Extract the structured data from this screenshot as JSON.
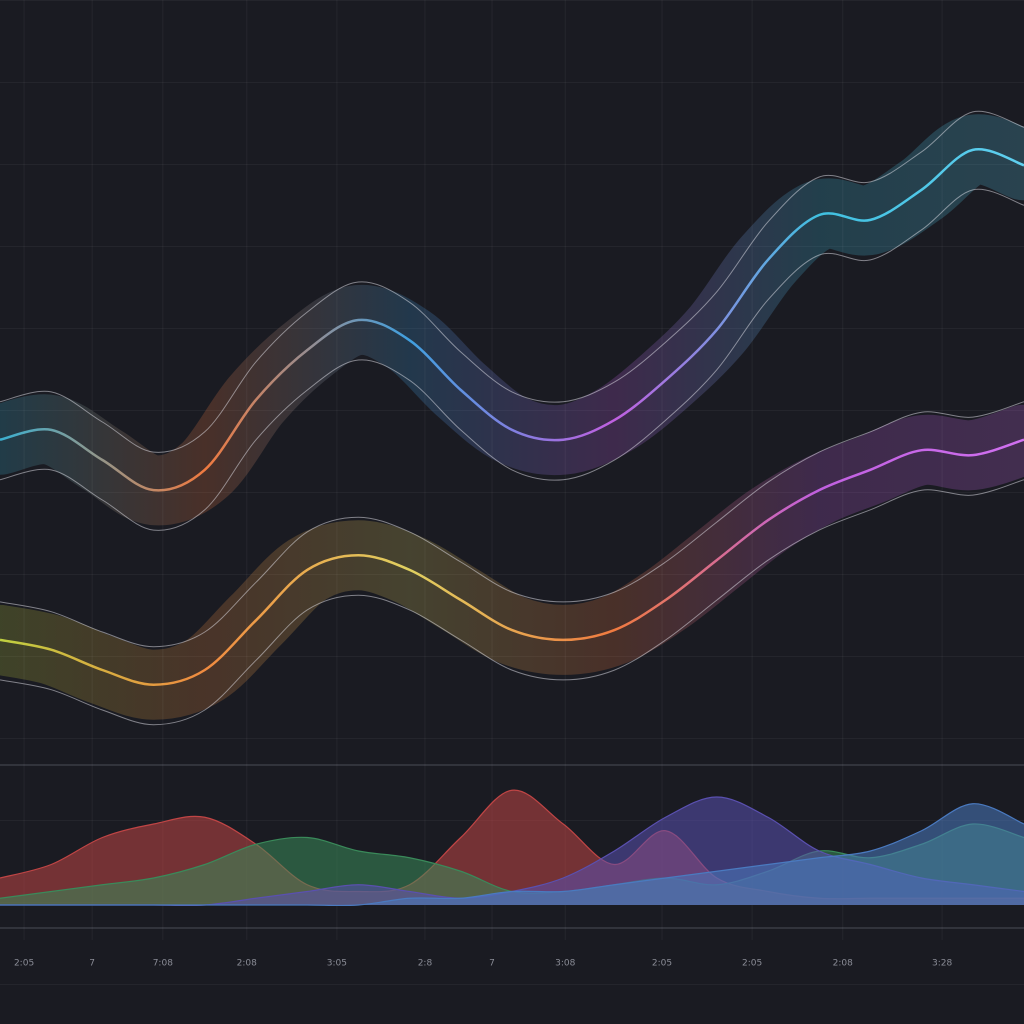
{
  "chart_data": [
    {
      "type": "line",
      "x": [
        0,
        1,
        2,
        3,
        4,
        5,
        6,
        7,
        8,
        9,
        10,
        11,
        12,
        13,
        14,
        15,
        16,
        17,
        18,
        19,
        20
      ],
      "xlim": [
        0,
        20
      ],
      "ylim": [
        0,
        100
      ],
      "series": [
        {
          "colors": [
            "#3bb0d0",
            "#f07a40",
            "#40a0e0",
            "#c060e0",
            "#40c0e0",
            "#60d0f0"
          ],
          "values": [
            42.9,
            44.3,
            40,
            35.7,
            38.6,
            48.6,
            55.7,
            60,
            57.1,
            50,
            44.3,
            42.9,
            45.7,
            51.4,
            58.6,
            68.6,
            75,
            74.3,
            78.6,
            84.3,
            82.1
          ]
        },
        {
          "colors": [
            "#c0d040",
            "#f08a40",
            "#e0d060",
            "#f07a40",
            "#c060e0",
            "#d070f0"
          ],
          "values": [
            14.3,
            12.9,
            10,
            7.9,
            10,
            17.1,
            24.3,
            26.4,
            24.3,
            20,
            15.7,
            14.3,
            15.7,
            20,
            25.7,
            31.4,
            35.7,
            38.6,
            41.4,
            40.7,
            42.9
          ]
        }
      ]
    },
    {
      "type": "area",
      "x": [
        0,
        1,
        2,
        3,
        4,
        5,
        6,
        7,
        8,
        9,
        10,
        11,
        12,
        13,
        14,
        15,
        16,
        17,
        18,
        19,
        20
      ],
      "xlim": [
        0,
        20
      ],
      "ylim": [
        0,
        100
      ],
      "xticks": [
        {
          "value": 0.47,
          "label": "2:05"
        },
        {
          "value": 1.8,
          "label": "7"
        },
        {
          "value": 3.18,
          "label": "7:08"
        },
        {
          "value": 4.82,
          "label": "2:08"
        },
        {
          "value": 6.58,
          "label": "3:05"
        },
        {
          "value": 8.3,
          "label": "2:8"
        },
        {
          "value": 9.61,
          "label": "7"
        },
        {
          "value": 11.04,
          "label": "3:08"
        },
        {
          "value": 12.93,
          "label": "2:05"
        },
        {
          "value": 14.69,
          "label": "2:05"
        },
        {
          "value": 16.46,
          "label": "2:08"
        },
        {
          "value": 18.4,
          "label": "3:28"
        }
      ],
      "series": [
        {
          "color": "#c04545",
          "values": [
            20,
            30,
            50,
            60,
            65,
            45,
            15,
            10,
            15,
            50,
            85,
            60,
            30,
            55,
            20,
            10,
            5,
            5,
            5,
            5,
            5
          ]
        },
        {
          "color": "#3a8a5a",
          "values": [
            5,
            10,
            15,
            20,
            30,
            45,
            50,
            40,
            35,
            25,
            10,
            10,
            15,
            20,
            15,
            25,
            40,
            35,
            45,
            60,
            50
          ]
        },
        {
          "color": "#5a50b0",
          "values": [
            0,
            0,
            0,
            0,
            0,
            5,
            10,
            15,
            10,
            5,
            10,
            20,
            40,
            65,
            80,
            65,
            40,
            30,
            20,
            15,
            10
          ]
        },
        {
          "color": "#4a7ac0",
          "values": [
            0,
            0,
            0,
            0,
            0,
            0,
            0,
            0,
            5,
            5,
            10,
            10,
            15,
            20,
            25,
            30,
            35,
            40,
            55,
            75,
            60
          ]
        }
      ]
    }
  ]
}
